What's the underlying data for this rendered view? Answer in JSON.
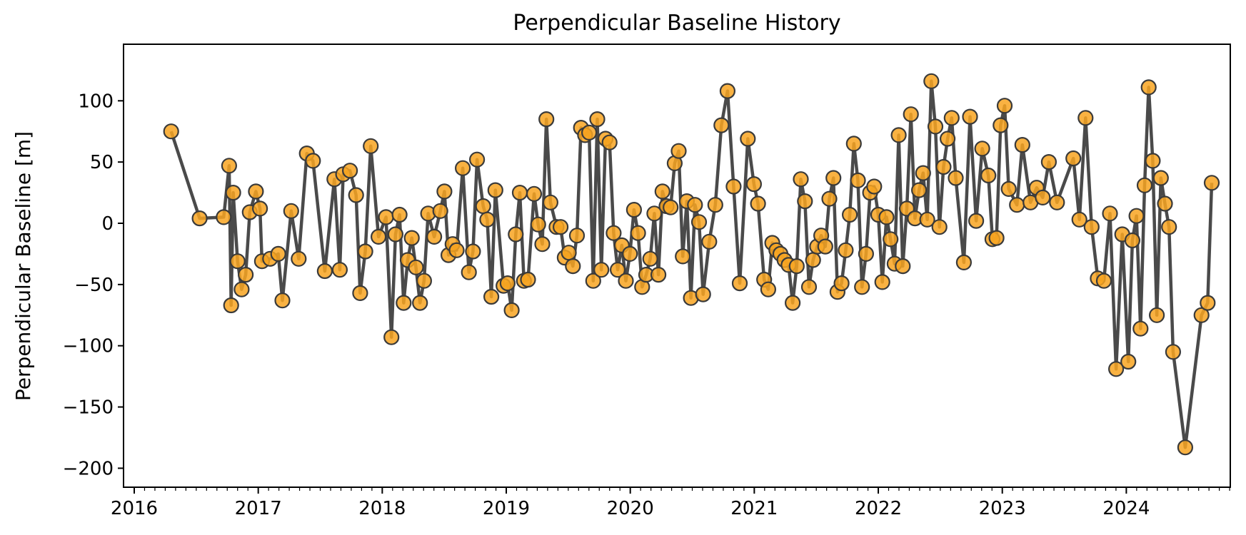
{
  "chart_data": {
    "type": "line",
    "title": "Perpendicular Baseline History",
    "xlabel": "",
    "ylabel": "Perpendicular Baseline [m]",
    "ylim": [
      -210,
      145
    ],
    "xlim": [
      "2016-01-01",
      "2024-12-31"
    ],
    "x_ticks": [
      "2016",
      "2017",
      "2018",
      "2019",
      "2020",
      "2021",
      "2022",
      "2023",
      "2024"
    ],
    "y_ticks": [
      -200,
      -150,
      -100,
      -50,
      0,
      50,
      100
    ],
    "y_tick_labels": [
      "−200",
      "−150",
      "−100",
      "−50",
      "0",
      "50",
      "100"
    ],
    "grid": false,
    "line_color": "#4a4a4a",
    "marker_color": "#f8a521",
    "marker_edge": "#3a3a3a",
    "series": [
      {
        "x": [
          "2016-04-19",
          "2016-07-12",
          "2016-09-21",
          "2016-10-07",
          "2016-10-13",
          "2016-10-19",
          "2016-11-01",
          "2016-11-13",
          "2016-11-25",
          "2016-12-07",
          "2016-12-25",
          "2017-01-06",
          "2017-01-12",
          "2017-02-05",
          "2017-03-01",
          "2017-03-13",
          "2017-04-08",
          "2017-04-30",
          "2017-05-24",
          "2017-06-11",
          "2017-07-16",
          "2017-08-13",
          "2017-08-29",
          "2017-09-08",
          "2017-09-28",
          "2017-10-16",
          "2017-10-28",
          "2017-11-12",
          "2017-11-28",
          "2017-12-21",
          "2018-01-12",
          "2018-01-28",
          "2018-02-09",
          "2018-02-21",
          "2018-03-05",
          "2018-03-17",
          "2018-03-29",
          "2018-04-10",
          "2018-04-22",
          "2018-05-04",
          "2018-05-16",
          "2018-06-03",
          "2018-06-21",
          "2018-07-03",
          "2018-07-15",
          "2018-07-27",
          "2018-08-08",
          "2018-08-26",
          "2018-09-13",
          "2018-09-25",
          "2018-10-07",
          "2018-10-25",
          "2018-11-06",
          "2018-11-18",
          "2018-11-30",
          "2018-12-24",
          "2019-01-05",
          "2019-01-17",
          "2019-01-29",
          "2019-02-10",
          "2019-02-22",
          "2019-03-06",
          "2019-03-24",
          "2019-04-05",
          "2019-04-17",
          "2019-04-29",
          "2019-05-11",
          "2019-05-29",
          "2019-06-10",
          "2019-06-22",
          "2019-07-04",
          "2019-07-16",
          "2019-07-28",
          "2019-08-09",
          "2019-08-21",
          "2019-09-02",
          "2019-09-14",
          "2019-09-26",
          "2019-10-08",
          "2019-10-20",
          "2019-11-01",
          "2019-11-13",
          "2019-11-25",
          "2019-12-07",
          "2019-12-19",
          "2019-12-31",
          "2020-01-12",
          "2020-01-24",
          "2020-02-05",
          "2020-02-17",
          "2020-02-29",
          "2020-03-12",
          "2020-03-24",
          "2020-04-05",
          "2020-04-17",
          "2020-04-29",
          "2020-05-11",
          "2020-05-23",
          "2020-06-04",
          "2020-06-16",
          "2020-06-28",
          "2020-07-10",
          "2020-07-22",
          "2020-08-03",
          "2020-08-21",
          "2020-09-08",
          "2020-09-26",
          "2020-10-14",
          "2020-11-01",
          "2020-11-19",
          "2020-12-13",
          "2020-12-31",
          "2021-01-12",
          "2021-01-30",
          "2021-02-11",
          "2021-02-23",
          "2021-03-07",
          "2021-03-19",
          "2021-03-31",
          "2021-04-12",
          "2021-04-24",
          "2021-05-06",
          "2021-05-18",
          "2021-05-30",
          "2021-06-11",
          "2021-06-23",
          "2021-07-05",
          "2021-07-17",
          "2021-07-29",
          "2021-08-10",
          "2021-08-22",
          "2021-09-03",
          "2021-09-15",
          "2021-09-27",
          "2021-10-09",
          "2021-10-21",
          "2021-11-02",
          "2021-11-14",
          "2021-11-26",
          "2021-12-08",
          "2021-12-20",
          "2022-01-01",
          "2022-01-13",
          "2022-01-25",
          "2022-02-06",
          "2022-02-18",
          "2022-03-02",
          "2022-03-14",
          "2022-03-26",
          "2022-04-07",
          "2022-04-19",
          "2022-05-01",
          "2022-05-13",
          "2022-05-25",
          "2022-06-06",
          "2022-06-18",
          "2022-06-30",
          "2022-07-12",
          "2022-07-24",
          "2022-08-05",
          "2022-08-17",
          "2022-09-10",
          "2022-09-28",
          "2022-10-16",
          "2022-11-03",
          "2022-11-21",
          "2022-12-03",
          "2022-12-15",
          "2022-12-27",
          "2023-01-08",
          "2023-01-20",
          "2023-02-13",
          "2023-03-01",
          "2023-03-25",
          "2023-04-12",
          "2023-04-30",
          "2023-05-18",
          "2023-06-11",
          "2023-07-29",
          "2023-08-16",
          "2023-09-03",
          "2023-09-21",
          "2023-10-09",
          "2023-10-27",
          "2023-11-14",
          "2023-12-02",
          "2023-12-20",
          "2024-01-07",
          "2024-01-19",
          "2024-01-31",
          "2024-02-12",
          "2024-02-24",
          "2024-03-07",
          "2024-03-19",
          "2024-03-31",
          "2024-04-12",
          "2024-04-24",
          "2024-05-06",
          "2024-05-18",
          "2024-06-23",
          "2024-08-10",
          "2024-08-28",
          "2024-09-09"
        ],
        "y": [
          75,
          4,
          5,
          47,
          -67,
          25,
          -31,
          -54,
          -42,
          9,
          26,
          12,
          -31,
          -29,
          -25,
          -63,
          10,
          -29,
          57,
          51,
          -39,
          36,
          -38,
          40,
          43,
          23,
          -57,
          -23,
          63,
          -11,
          5,
          -93,
          -9,
          7,
          -65,
          -30,
          -12,
          -36,
          -65,
          -47,
          8,
          -11,
          10,
          26,
          -26,
          -17,
          -22,
          45,
          -40,
          -23,
          52,
          14,
          3,
          -60,
          27,
          -51,
          -49,
          -71,
          -9,
          25,
          -47,
          -46,
          24,
          -1,
          -17,
          85,
          17,
          -3,
          -3,
          -28,
          -24,
          -35,
          -10,
          78,
          72,
          74,
          -47,
          85,
          -38,
          69,
          66,
          -8,
          -38,
          -18,
          -47,
          -25,
          11,
          -8,
          -52,
          -42,
          -29,
          8,
          -42,
          26,
          14,
          13,
          49,
          59,
          -27,
          18,
          -61,
          15,
          1,
          -58,
          -15,
          15,
          80,
          108,
          30,
          -49,
          69,
          32,
          16,
          -46,
          -54,
          -16,
          -22,
          -25,
          -30,
          -34,
          -65,
          -35,
          36,
          18,
          -52,
          -30,
          -19,
          -10,
          -19,
          20,
          37,
          -56,
          -49,
          -22,
          7,
          65,
          35,
          -52,
          -25,
          25,
          30,
          7,
          -48,
          5,
          -13,
          -33,
          72,
          -35,
          12,
          89,
          4,
          27,
          41,
          3,
          116,
          79,
          -3,
          46,
          69,
          86,
          37,
          -32,
          87,
          2,
          61,
          39,
          -13,
          -12,
          80,
          96,
          28,
          15,
          64,
          17,
          29,
          21,
          50,
          17,
          53,
          3,
          86,
          -3,
          -45,
          -47,
          8,
          -119,
          -9,
          -113,
          -14,
          6,
          -86,
          31,
          111,
          51,
          -75,
          37,
          16,
          -3,
          -105,
          -183,
          -75,
          -65,
          33
        ]
      }
    ]
  }
}
